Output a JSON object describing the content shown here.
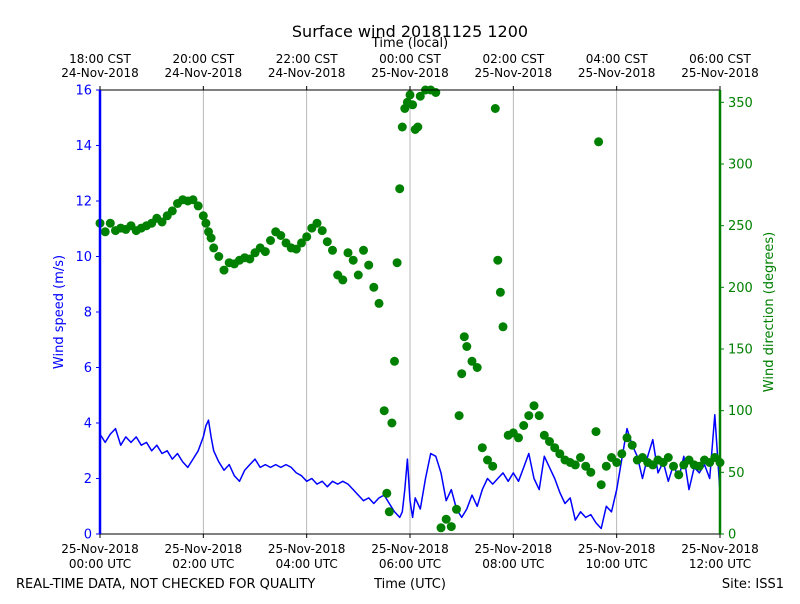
{
  "chart_data": {
    "type": "line",
    "title": "Surface wind 20181125 1200",
    "top_axis_label": "Time (local)",
    "xlabel": "Time (UTC)",
    "ylabel_left": "Wind speed (m/s)",
    "ylabel_right": "Wind direction (degrees)",
    "footer_left": "REAL-TIME DATA, NOT CHECKED FOR QUALITY",
    "footer_right": "Site: ISS1",
    "x_range_hours": [
      0,
      12
    ],
    "ylim_left": [
      0,
      16
    ],
    "ylim_right": [
      0,
      360
    ],
    "yticks_left": [
      "0",
      "2",
      "4",
      "6",
      "8",
      "10",
      "12",
      "14",
      "16"
    ],
    "yticks_right": [
      "0",
      "50",
      "100",
      "150",
      "200",
      "250",
      "300",
      "350"
    ],
    "xticks_bottom": [
      {
        "hour": 0,
        "line1": "25-Nov-2018",
        "line2": "00:00 UTC"
      },
      {
        "hour": 2,
        "line1": "25-Nov-2018",
        "line2": "02:00 UTC"
      },
      {
        "hour": 4,
        "line1": "25-Nov-2018",
        "line2": "04:00 UTC"
      },
      {
        "hour": 6,
        "line1": "25-Nov-2018",
        "line2": "06:00 UTC"
      },
      {
        "hour": 8,
        "line1": "25-Nov-2018",
        "line2": "08:00 UTC"
      },
      {
        "hour": 10,
        "line1": "25-Nov-2018",
        "line2": "10:00 UTC"
      },
      {
        "hour": 12,
        "line1": "25-Nov-2018",
        "line2": "12:00 UTC"
      }
    ],
    "xticks_top": [
      {
        "hour": 0,
        "line1": "18:00 CST",
        "line2": "24-Nov-2018"
      },
      {
        "hour": 2,
        "line1": "20:00 CST",
        "line2": "24-Nov-2018"
      },
      {
        "hour": 4,
        "line1": "22:00 CST",
        "line2": "24-Nov-2018"
      },
      {
        "hour": 6,
        "line1": "00:00 CST",
        "line2": "25-Nov-2018"
      },
      {
        "hour": 8,
        "line1": "02:00 CST",
        "line2": "25-Nov-2018"
      },
      {
        "hour": 10,
        "line1": "04:00 CST",
        "line2": "25-Nov-2018"
      },
      {
        "hour": 12,
        "line1": "06:00 CST",
        "line2": "25-Nov-2018"
      }
    ],
    "colors": {
      "speed": "#0000ff",
      "direction": "#008000",
      "grid": "#b0b0b0",
      "text": "#000000"
    },
    "series": [
      {
        "name": "Wind speed (m/s)",
        "axis": "left",
        "style": "line",
        "points": [
          [
            0.0,
            3.6
          ],
          [
            0.1,
            3.3
          ],
          [
            0.2,
            3.6
          ],
          [
            0.3,
            3.8
          ],
          [
            0.4,
            3.2
          ],
          [
            0.5,
            3.5
          ],
          [
            0.6,
            3.3
          ],
          [
            0.7,
            3.5
          ],
          [
            0.8,
            3.2
          ],
          [
            0.9,
            3.3
          ],
          [
            1.0,
            3.0
          ],
          [
            1.1,
            3.2
          ],
          [
            1.2,
            2.9
          ],
          [
            1.3,
            3.0
          ],
          [
            1.4,
            2.7
          ],
          [
            1.5,
            2.9
          ],
          [
            1.6,
            2.6
          ],
          [
            1.7,
            2.4
          ],
          [
            1.8,
            2.7
          ],
          [
            1.9,
            3.0
          ],
          [
            2.0,
            3.5
          ],
          [
            2.05,
            3.9
          ],
          [
            2.1,
            4.1
          ],
          [
            2.15,
            3.5
          ],
          [
            2.2,
            3.0
          ],
          [
            2.3,
            2.6
          ],
          [
            2.4,
            2.3
          ],
          [
            2.5,
            2.5
          ],
          [
            2.6,
            2.1
          ],
          [
            2.7,
            1.9
          ],
          [
            2.8,
            2.3
          ],
          [
            2.9,
            2.5
          ],
          [
            3.0,
            2.7
          ],
          [
            3.1,
            2.4
          ],
          [
            3.2,
            2.5
          ],
          [
            3.3,
            2.4
          ],
          [
            3.4,
            2.5
          ],
          [
            3.5,
            2.4
          ],
          [
            3.6,
            2.5
          ],
          [
            3.7,
            2.4
          ],
          [
            3.8,
            2.2
          ],
          [
            3.9,
            2.1
          ],
          [
            4.0,
            1.9
          ],
          [
            4.1,
            2.0
          ],
          [
            4.2,
            1.8
          ],
          [
            4.3,
            1.9
          ],
          [
            4.4,
            1.7
          ],
          [
            4.5,
            1.9
          ],
          [
            4.6,
            1.8
          ],
          [
            4.7,
            1.9
          ],
          [
            4.8,
            1.8
          ],
          [
            4.9,
            1.6
          ],
          [
            5.0,
            1.4
          ],
          [
            5.1,
            1.2
          ],
          [
            5.2,
            1.3
          ],
          [
            5.3,
            1.1
          ],
          [
            5.4,
            1.3
          ],
          [
            5.5,
            1.4
          ],
          [
            5.6,
            1.1
          ],
          [
            5.7,
            0.8
          ],
          [
            5.8,
            0.6
          ],
          [
            5.85,
            0.8
          ],
          [
            5.9,
            1.6
          ],
          [
            5.95,
            2.7
          ],
          [
            6.0,
            1.2
          ],
          [
            6.05,
            0.6
          ],
          [
            6.1,
            1.3
          ],
          [
            6.2,
            0.9
          ],
          [
            6.3,
            2.0
          ],
          [
            6.4,
            2.9
          ],
          [
            6.5,
            2.8
          ],
          [
            6.6,
            2.2
          ],
          [
            6.7,
            1.2
          ],
          [
            6.8,
            1.6
          ],
          [
            6.9,
            0.9
          ],
          [
            7.0,
            0.6
          ],
          [
            7.1,
            0.9
          ],
          [
            7.2,
            1.4
          ],
          [
            7.3,
            1.0
          ],
          [
            7.4,
            1.6
          ],
          [
            7.5,
            2.0
          ],
          [
            7.6,
            1.8
          ],
          [
            7.7,
            2.0
          ],
          [
            7.8,
            2.2
          ],
          [
            7.9,
            1.9
          ],
          [
            8.0,
            2.2
          ],
          [
            8.1,
            1.9
          ],
          [
            8.2,
            2.4
          ],
          [
            8.3,
            2.9
          ],
          [
            8.4,
            2.0
          ],
          [
            8.5,
            1.6
          ],
          [
            8.6,
            2.8
          ],
          [
            8.7,
            2.4
          ],
          [
            8.8,
            2.0
          ],
          [
            8.9,
            1.5
          ],
          [
            9.0,
            1.1
          ],
          [
            9.1,
            1.3
          ],
          [
            9.2,
            0.5
          ],
          [
            9.3,
            0.8
          ],
          [
            9.4,
            0.6
          ],
          [
            9.5,
            0.7
          ],
          [
            9.6,
            0.4
          ],
          [
            9.7,
            0.2
          ],
          [
            9.8,
            1.0
          ],
          [
            9.9,
            0.8
          ],
          [
            10.0,
            1.6
          ],
          [
            10.1,
            2.7
          ],
          [
            10.2,
            3.8
          ],
          [
            10.3,
            3.2
          ],
          [
            10.4,
            2.8
          ],
          [
            10.5,
            2.0
          ],
          [
            10.6,
            2.8
          ],
          [
            10.7,
            3.4
          ],
          [
            10.8,
            2.2
          ],
          [
            10.9,
            2.6
          ],
          [
            11.0,
            1.9
          ],
          [
            11.1,
            2.5
          ],
          [
            11.2,
            2.0
          ],
          [
            11.3,
            2.8
          ],
          [
            11.4,
            1.6
          ],
          [
            11.5,
            2.4
          ],
          [
            11.6,
            2.2
          ],
          [
            11.7,
            2.5
          ],
          [
            11.8,
            2.0
          ],
          [
            11.9,
            4.3
          ],
          [
            12.0,
            1.5
          ]
        ]
      },
      {
        "name": "Wind direction (degrees)",
        "axis": "right",
        "style": "markers",
        "points": [
          [
            0.0,
            252
          ],
          [
            0.1,
            245
          ],
          [
            0.2,
            252
          ],
          [
            0.3,
            246
          ],
          [
            0.4,
            248
          ],
          [
            0.5,
            247
          ],
          [
            0.6,
            250
          ],
          [
            0.7,
            246
          ],
          [
            0.8,
            248
          ],
          [
            0.9,
            250
          ],
          [
            1.0,
            252
          ],
          [
            1.1,
            256
          ],
          [
            1.2,
            253
          ],
          [
            1.3,
            258
          ],
          [
            1.4,
            262
          ],
          [
            1.5,
            268
          ],
          [
            1.6,
            271
          ],
          [
            1.7,
            270
          ],
          [
            1.8,
            271
          ],
          [
            1.9,
            266
          ],
          [
            2.0,
            258
          ],
          [
            2.05,
            252
          ],
          [
            2.1,
            245
          ],
          [
            2.15,
            240
          ],
          [
            2.2,
            232
          ],
          [
            2.3,
            225
          ],
          [
            2.4,
            214
          ],
          [
            2.5,
            220
          ],
          [
            2.6,
            219
          ],
          [
            2.7,
            222
          ],
          [
            2.8,
            224
          ],
          [
            2.9,
            223
          ],
          [
            3.0,
            228
          ],
          [
            3.1,
            232
          ],
          [
            3.2,
            229
          ],
          [
            3.3,
            238
          ],
          [
            3.4,
            245
          ],
          [
            3.5,
            242
          ],
          [
            3.6,
            236
          ],
          [
            3.7,
            232
          ],
          [
            3.8,
            231
          ],
          [
            3.9,
            236
          ],
          [
            4.0,
            241
          ],
          [
            4.1,
            248
          ],
          [
            4.2,
            252
          ],
          [
            4.3,
            246
          ],
          [
            4.4,
            237
          ],
          [
            4.5,
            230
          ],
          [
            4.6,
            210
          ],
          [
            4.7,
            206
          ],
          [
            4.8,
            228
          ],
          [
            4.9,
            222
          ],
          [
            5.0,
            210
          ],
          [
            5.1,
            230
          ],
          [
            5.2,
            218
          ],
          [
            5.3,
            200
          ],
          [
            5.4,
            187
          ],
          [
            5.5,
            100
          ],
          [
            5.55,
            33
          ],
          [
            5.6,
            18
          ],
          [
            5.65,
            90
          ],
          [
            5.7,
            140
          ],
          [
            5.75,
            220
          ],
          [
            5.8,
            280
          ],
          [
            5.85,
            330
          ],
          [
            5.9,
            345
          ],
          [
            5.95,
            350
          ],
          [
            6.0,
            356
          ],
          [
            6.05,
            348
          ],
          [
            6.1,
            328
          ],
          [
            6.15,
            330
          ],
          [
            6.2,
            355
          ],
          [
            6.3,
            362
          ],
          [
            6.4,
            362
          ],
          [
            6.5,
            358
          ],
          [
            6.6,
            5
          ],
          [
            6.7,
            12
          ],
          [
            6.8,
            6
          ],
          [
            6.9,
            20
          ],
          [
            6.95,
            96
          ],
          [
            7.0,
            130
          ],
          [
            7.05,
            160
          ],
          [
            7.1,
            152
          ],
          [
            7.2,
            140
          ],
          [
            7.3,
            135
          ],
          [
            7.4,
            70
          ],
          [
            7.5,
            60
          ],
          [
            7.6,
            55
          ],
          [
            7.65,
            345
          ],
          [
            7.7,
            222
          ],
          [
            7.75,
            196
          ],
          [
            7.8,
            168
          ],
          [
            7.9,
            80
          ],
          [
            8.0,
            82
          ],
          [
            8.1,
            78
          ],
          [
            8.2,
            88
          ],
          [
            8.3,
            96
          ],
          [
            8.4,
            104
          ],
          [
            8.5,
            96
          ],
          [
            8.6,
            80
          ],
          [
            8.7,
            75
          ],
          [
            8.8,
            70
          ],
          [
            8.9,
            65
          ],
          [
            9.0,
            60
          ],
          [
            9.1,
            58
          ],
          [
            9.2,
            56
          ],
          [
            9.3,
            62
          ],
          [
            9.4,
            55
          ],
          [
            9.5,
            50
          ],
          [
            9.6,
            83
          ],
          [
            9.65,
            318
          ],
          [
            9.7,
            40
          ],
          [
            9.8,
            55
          ],
          [
            9.9,
            62
          ],
          [
            10.0,
            58
          ],
          [
            10.1,
            65
          ],
          [
            10.2,
            78
          ],
          [
            10.3,
            72
          ],
          [
            10.4,
            60
          ],
          [
            10.5,
            62
          ],
          [
            10.6,
            58
          ],
          [
            10.7,
            56
          ],
          [
            10.8,
            60
          ],
          [
            10.9,
            58
          ],
          [
            11.0,
            62
          ],
          [
            11.1,
            55
          ],
          [
            11.2,
            48
          ],
          [
            11.3,
            56
          ],
          [
            11.4,
            60
          ],
          [
            11.5,
            56
          ],
          [
            11.6,
            55
          ],
          [
            11.7,
            60
          ],
          [
            11.8,
            58
          ],
          [
            11.9,
            62
          ],
          [
            12.0,
            58
          ]
        ]
      }
    ]
  }
}
